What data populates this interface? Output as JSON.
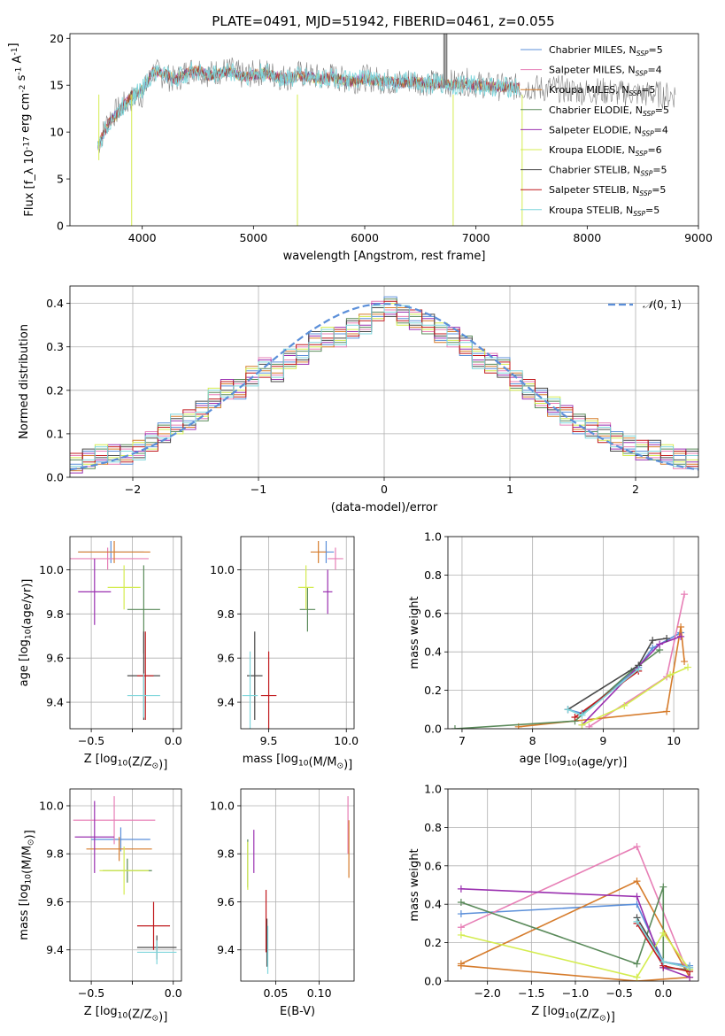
{
  "figure_title": "PLATE=0491, MJD=51942, FIBERID=0461, z=0.055",
  "colors": {
    "Chabrier MILES": "#5b8fd9",
    "Salpeter MILES": "#e77fb6",
    "Kroupa MILES": "#d67c2c",
    "Chabrier ELODIE": "#5a8a5a",
    "Salpeter ELODIE": "#9a30b0",
    "Kroupa ELODIE": "#d4ec50",
    "Chabrier STELIB": "#4a4a4a",
    "Salpeter STELIB": "#c0181c",
    "Kroupa STELIB": "#7fd6dc",
    "data": "#808080",
    "normal": "#5b8fd9"
  },
  "chart_data": [
    {
      "id": "spectrum",
      "type": "line",
      "xlabel": "wavelength [Angstrom, rest frame]",
      "ylabel": "Flux [f_λ 10^-17 erg cm^-2 s^-1 A^-1]",
      "xlim": [
        3350,
        9000
      ],
      "ylim": [
        0,
        20.5
      ],
      "xticks": [
        4000,
        5000,
        6000,
        7000,
        8000,
        9000
      ],
      "yticks": [
        0,
        5,
        10,
        15,
        20
      ],
      "legend": {
        "position": "right",
        "entries": [
          "Chabrier MILES, N_SSP=5",
          "Salpeter MILES, N_SSP=4",
          "Kroupa MILES, N_SSP=5",
          "Chabrier ELODIE, N_SSP=5",
          "Salpeter ELODIE, N_SSP=4",
          "Kroupa ELODIE, N_SSP=6",
          "Chabrier STELIB, N_SSP=5",
          "Salpeter STELIB, N_SSP=5",
          "Kroupa STELIB, N_SSP=5"
        ]
      },
      "data_curve": {
        "x": [
          3600,
          3700,
          3800,
          3900,
          4000,
          4100,
          4200,
          4300,
          4400,
          4500,
          4600,
          4700,
          4800,
          4900,
          5000,
          5100,
          5200,
          5300,
          5400,
          5500,
          5600,
          5700,
          5800,
          5900,
          6000,
          6100,
          6200,
          6300,
          6400,
          6500,
          6600,
          6700,
          6800,
          6900,
          7000,
          7100,
          7200,
          7300,
          7400,
          7500,
          7600,
          7700,
          7800,
          7900,
          8000,
          8100,
          8200,
          8300,
          8400,
          8500,
          8600,
          8700,
          8800
        ],
        "y": [
          8.5,
          11.5,
          12.5,
          13.5,
          14.0,
          16.5,
          16.0,
          15.5,
          16.5,
          16.8,
          16.2,
          16.5,
          16.6,
          16.0,
          16.2,
          16.5,
          16.0,
          15.8,
          16.2,
          16.0,
          15.8,
          16.0,
          15.6,
          15.5,
          15.8,
          15.6,
          15.4,
          15.3,
          15.5,
          15.4,
          15.2,
          15.3,
          15.2,
          15.4,
          15.1,
          15.0,
          14.8,
          14.9,
          14.7,
          14.8,
          14.6,
          14.7,
          14.5,
          14.4,
          14.3,
          14.4,
          14.3,
          14.1,
          14.2,
          14.0,
          14.1,
          13.9,
          14.0
        ]
      },
      "model_curve": {
        "x": [
          3600,
          3700,
          3800,
          3900,
          4000,
          4100,
          4200,
          4300,
          4400,
          4500,
          4600,
          4700,
          4800,
          4900,
          5000,
          5100,
          5200,
          5300,
          5400,
          5500,
          5600,
          5700,
          5800,
          5900,
          6000,
          6100,
          6200,
          6300,
          6400,
          6500,
          6600,
          6700,
          6800,
          6900,
          7000,
          7100,
          7200,
          7300,
          7400
        ],
        "y": [
          8.5,
          11.0,
          12.3,
          13.8,
          14.5,
          16.5,
          16.2,
          15.6,
          16.3,
          16.6,
          16.0,
          16.3,
          16.5,
          15.9,
          16.1,
          16.3,
          15.9,
          15.7,
          16.0,
          15.9,
          15.7,
          15.9,
          15.5,
          15.4,
          15.7,
          15.5,
          15.4,
          15.2,
          15.4,
          15.3,
          15.1,
          15.2,
          15.0,
          15.2,
          15.0,
          14.9,
          14.8,
          14.8,
          14.7
        ]
      }
    },
    {
      "id": "residuals",
      "type": "line",
      "xlabel": "(data-model)/error",
      "ylabel": "Normed distribution",
      "xlim": [
        -2.5,
        2.5
      ],
      "ylim": [
        0,
        0.44
      ],
      "xticks": [
        -2,
        -1,
        0,
        1,
        2
      ],
      "yticks": [
        0.0,
        0.1,
        0.2,
        0.3,
        0.4
      ],
      "legend": {
        "position": "top-right",
        "entries": [
          "N(0,1)"
        ]
      },
      "bins": [
        -2.5,
        -2.4,
        -2.3,
        -2.2,
        -2.1,
        -2.0,
        -1.9,
        -1.8,
        -1.7,
        -1.6,
        -1.5,
        -1.4,
        -1.3,
        -1.2,
        -1.1,
        -1.0,
        -0.9,
        -0.8,
        -0.7,
        -0.6,
        -0.5,
        -0.4,
        -0.3,
        -0.2,
        -0.1,
        0.0,
        0.1,
        0.2,
        0.3,
        0.4,
        0.5,
        0.6,
        0.7,
        0.8,
        0.9,
        1.0,
        1.1,
        1.2,
        1.3,
        1.4,
        1.5,
        1.6,
        1.7,
        1.8,
        1.9,
        2.0,
        2.1,
        2.2,
        2.3,
        2.4
      ],
      "histogram_base": [
        0.03,
        0.04,
        0.05,
        0.05,
        0.05,
        0.06,
        0.08,
        0.1,
        0.12,
        0.13,
        0.15,
        0.18,
        0.2,
        0.2,
        0.23,
        0.25,
        0.24,
        0.27,
        0.28,
        0.31,
        0.32,
        0.32,
        0.34,
        0.35,
        0.38,
        0.39,
        0.37,
        0.36,
        0.35,
        0.33,
        0.32,
        0.3,
        0.27,
        0.26,
        0.25,
        0.22,
        0.2,
        0.18,
        0.16,
        0.14,
        0.12,
        0.11,
        0.1,
        0.08,
        0.07,
        0.06,
        0.06,
        0.05,
        0.04,
        0.04
      ]
    },
    {
      "id": "age-vs-Z",
      "type": "scatter",
      "xlabel": "Z [log10(Z/Z_sun)]",
      "ylabel": "age [log10(age/yr)]",
      "xlim": [
        -0.63,
        0.05
      ],
      "ylim": [
        9.28,
        10.15
      ],
      "xticks": [
        -0.5,
        -0.25,
        0.0
      ],
      "yticks": [
        9.4,
        9.6,
        9.8,
        10.0
      ],
      "points": [
        {
          "model": "Chabrier MILES",
          "x": -0.38,
          "y": 10.08,
          "xerr": 0.2,
          "yerr": 0.05
        },
        {
          "model": "Salpeter MILES",
          "x": -0.4,
          "y": 10.05,
          "xerr": 0.25,
          "yerr": 0.05
        },
        {
          "model": "Kroupa MILES",
          "x": -0.36,
          "y": 10.08,
          "xerr": 0.22,
          "yerr": 0.05
        },
        {
          "model": "Chabrier ELODIE",
          "x": -0.18,
          "y": 9.82,
          "xerr": 0.1,
          "yerr": 0.2
        },
        {
          "model": "Salpeter ELODIE",
          "x": -0.48,
          "y": 9.9,
          "xerr": 0.1,
          "yerr": 0.15
        },
        {
          "model": "Kroupa ELODIE",
          "x": -0.3,
          "y": 9.92,
          "xerr": 0.1,
          "yerr": 0.1
        },
        {
          "model": "Chabrier STELIB",
          "x": -0.18,
          "y": 9.52,
          "xerr": 0.1,
          "yerr": 0.2
        },
        {
          "model": "Salpeter STELIB",
          "x": -0.17,
          "y": 9.52,
          "xerr": 0.05,
          "yerr": 0.2
        },
        {
          "model": "Kroupa STELIB",
          "x": -0.18,
          "y": 9.43,
          "xerr": 0.1,
          "yerr": 0.1
        }
      ]
    },
    {
      "id": "age-vs-mass",
      "type": "scatter",
      "xlabel": "mass [log10(M/M_sun)]",
      "ylabel": "",
      "xlim": [
        9.32,
        10.05
      ],
      "ylim": [
        9.28,
        10.15
      ],
      "xticks": [
        9.5,
        10.0
      ],
      "yticks": [
        9.4,
        9.6,
        9.8,
        10.0
      ],
      "points": [
        {
          "model": "Chabrier MILES",
          "x": 9.87,
          "y": 10.08,
          "xerr": 0.05,
          "yerr": 0.05
        },
        {
          "model": "Salpeter MILES",
          "x": 9.93,
          "y": 10.05,
          "xerr": 0.05,
          "yerr": 0.05
        },
        {
          "model": "Kroupa MILES",
          "x": 9.82,
          "y": 10.08,
          "xerr": 0.05,
          "yerr": 0.05
        },
        {
          "model": "Chabrier ELODIE",
          "x": 9.75,
          "y": 9.82,
          "xerr": 0.05,
          "yerr": 0.1
        },
        {
          "model": "Salpeter ELODIE",
          "x": 9.88,
          "y": 9.9,
          "xerr": 0.03,
          "yerr": 0.1
        },
        {
          "model": "Kroupa ELODIE",
          "x": 9.74,
          "y": 9.92,
          "xerr": 0.05,
          "yerr": 0.1
        },
        {
          "model": "Chabrier STELIB",
          "x": 9.41,
          "y": 9.52,
          "xerr": 0.05,
          "yerr": 0.2
        },
        {
          "model": "Salpeter STELIB",
          "x": 9.5,
          "y": 9.43,
          "xerr": 0.05,
          "yerr": 0.2
        },
        {
          "model": "Kroupa STELIB",
          "x": 9.38,
          "y": 9.43,
          "xerr": 0.05,
          "yerr": 0.2
        }
      ]
    },
    {
      "id": "mass-weight-vs-age",
      "type": "line",
      "xlabel": "age [log10(age/yr)]",
      "ylabel": "mass weight",
      "xlim": [
        6.8,
        10.35
      ],
      "ylim": [
        0,
        1.0
      ],
      "xticks": [
        7,
        8,
        9,
        10
      ],
      "yticks": [
        0.0,
        0.2,
        0.4,
        0.6,
        0.8,
        1.0
      ],
      "series": [
        {
          "model": "Chabrier MILES",
          "x": [
            8.5,
            8.7,
            9.5,
            9.7,
            10.1
          ],
          "y": [
            0.1,
            0.08,
            0.32,
            0.42,
            0.5
          ]
        },
        {
          "model": "Salpeter MILES",
          "x": [
            8.8,
            9.9,
            10.15
          ],
          "y": [
            0.01,
            0.27,
            0.7
          ]
        },
        {
          "model": "Kroupa MILES",
          "x": [
            7.8,
            9.9,
            10.1,
            10.15
          ],
          "y": [
            0.01,
            0.09,
            0.53,
            0.35
          ]
        },
        {
          "model": "Chabrier ELODIE",
          "x": [
            6.9,
            8.6,
            9.4,
            9.8
          ],
          "y": [
            0.0,
            0.04,
            0.3,
            0.41
          ]
        },
        {
          "model": "Salpeter ELODIE",
          "x": [
            8.7,
            9.8,
            10.1
          ],
          "y": [
            0.02,
            0.44,
            0.48
          ]
        },
        {
          "model": "Kroupa ELODIE",
          "x": [
            8.7,
            9.3,
            9.95,
            10.2
          ],
          "y": [
            0.02,
            0.12,
            0.28,
            0.32
          ]
        },
        {
          "model": "Chabrier STELIB",
          "x": [
            8.5,
            9.5,
            9.7,
            9.9
          ],
          "y": [
            0.1,
            0.33,
            0.46,
            0.47
          ]
        },
        {
          "model": "Salpeter STELIB",
          "x": [
            8.6,
            9.5
          ],
          "y": [
            0.06,
            0.3
          ]
        },
        {
          "model": "Kroupa STELIB",
          "x": [
            8.5,
            8.7,
            9.5
          ],
          "y": [
            0.1,
            0.07,
            0.31
          ]
        }
      ]
    },
    {
      "id": "mass-vs-Z",
      "type": "scatter",
      "xlabel": "Z [log10(Z/Z_sun)]",
      "ylabel": "mass [log10(M/M_sun)]",
      "xlim": [
        -0.63,
        0.05
      ],
      "ylim": [
        9.27,
        10.07
      ],
      "xticks": [
        -0.5,
        -0.25,
        0.0
      ],
      "yticks": [
        9.4,
        9.6,
        9.8,
        10.0
      ],
      "points": [
        {
          "model": "Chabrier MILES",
          "x": -0.32,
          "y": 9.86,
          "xerr": 0.18,
          "yerr": 0.05
        },
        {
          "model": "Salpeter MILES",
          "x": -0.36,
          "y": 9.94,
          "xerr": 0.25,
          "yerr": 0.1
        },
        {
          "model": "Kroupa MILES",
          "x": -0.33,
          "y": 9.82,
          "xerr": 0.2,
          "yerr": 0.05
        },
        {
          "model": "Chabrier ELODIE",
          "x": -0.28,
          "y": 9.73,
          "xerr": 0.15,
          "yerr": 0.05
        },
        {
          "model": "Salpeter ELODIE",
          "x": -0.48,
          "y": 9.87,
          "xerr": 0.12,
          "yerr": 0.15
        },
        {
          "model": "Kroupa ELODIE",
          "x": -0.3,
          "y": 9.73,
          "xerr": 0.15,
          "yerr": 0.1
        },
        {
          "model": "Chabrier STELIB",
          "x": -0.1,
          "y": 9.41,
          "xerr": 0.12,
          "yerr": 0.05
        },
        {
          "model": "Salpeter STELIB",
          "x": -0.12,
          "y": 9.5,
          "xerr": 0.1,
          "yerr": 0.1
        },
        {
          "model": "Kroupa STELIB",
          "x": -0.1,
          "y": 9.39,
          "xerr": 0.12,
          "yerr": 0.05
        }
      ]
    },
    {
      "id": "mass-vs-EBV",
      "type": "scatter",
      "xlabel": "E(B-V)",
      "ylabel": "",
      "xlim": [
        0.01,
        0.14
      ],
      "ylim": [
        9.27,
        10.07
      ],
      "xticks": [
        0.05,
        0.1
      ],
      "yticks": [
        9.4,
        9.6,
        9.8,
        10.0
      ],
      "points": [
        {
          "model": "Salpeter MILES",
          "x": 0.133,
          "y": 9.92,
          "xerr": 0.0,
          "yerr": 0.12
        },
        {
          "model": "Kroupa MILES",
          "x": 0.134,
          "y": 9.82,
          "xerr": 0.0,
          "yerr": 0.12
        },
        {
          "model": "Chabrier ELODIE",
          "x": 0.018,
          "y": 9.76,
          "xerr": 0.0,
          "yerr": 0.1
        },
        {
          "model": "Salpeter ELODIE",
          "x": 0.025,
          "y": 9.81,
          "xerr": 0.0,
          "yerr": 0.09
        },
        {
          "model": "Kroupa ELODIE",
          "x": 0.018,
          "y": 9.75,
          "xerr": 0.0,
          "yerr": 0.1
        },
        {
          "model": "Chabrier STELIB",
          "x": 0.04,
          "y": 9.43,
          "xerr": 0.0,
          "yerr": 0.1
        },
        {
          "model": "Salpeter STELIB",
          "x": 0.039,
          "y": 9.52,
          "xerr": 0.0,
          "yerr": 0.13
        },
        {
          "model": "Kroupa STELIB",
          "x": 0.041,
          "y": 9.4,
          "xerr": 0.0,
          "yerr": 0.1
        }
      ]
    },
    {
      "id": "mass-weight-vs-Z",
      "type": "line",
      "xlabel": "Z [log10(Z/Z_sun)]",
      "ylabel": "mass weight",
      "xlim": [
        -2.45,
        0.4
      ],
      "ylim": [
        0,
        1.0
      ],
      "xticks": [
        -2.0,
        -1.5,
        -1.0,
        -0.5,
        0.0
      ],
      "yticks": [
        0.0,
        0.2,
        0.4,
        0.6,
        0.8,
        1.0
      ],
      "series": [
        {
          "model": "Chabrier MILES",
          "x": [
            -2.3,
            -0.3,
            0.0,
            0.3
          ],
          "y": [
            0.35,
            0.4,
            0.1,
            0.08
          ]
        },
        {
          "model": "Salpeter MILES",
          "x": [
            -2.3,
            -0.3,
            0.3
          ],
          "y": [
            0.28,
            0.7,
            0.02
          ]
        },
        {
          "model": "Kroupa MILES",
          "x": [
            -2.3,
            -0.3,
            0.3,
            -0.3,
            -2.3
          ],
          "y": [
            0.09,
            0.52,
            0.02,
            0.0,
            0.08
          ]
        },
        {
          "model": "Chabrier ELODIE",
          "x": [
            -2.3,
            -0.3,
            0.0,
            0.0,
            0.3
          ],
          "y": [
            0.41,
            0.09,
            0.49,
            0.07,
            0.06
          ]
        },
        {
          "model": "Salpeter ELODIE",
          "x": [
            -2.3,
            -0.3,
            0.0,
            0.3
          ],
          "y": [
            0.48,
            0.44,
            0.07,
            0.02
          ]
        },
        {
          "model": "Kroupa ELODIE",
          "x": [
            -2.3,
            -0.3,
            0.0,
            0.3
          ],
          "y": [
            0.24,
            0.02,
            0.25,
            0.06
          ]
        },
        {
          "model": "Chabrier STELIB",
          "x": [
            -0.3,
            0.0,
            0.3
          ],
          "y": [
            0.33,
            0.1,
            0.07
          ]
        },
        {
          "model": "Salpeter STELIB",
          "x": [
            -0.3,
            0.0,
            0.3
          ],
          "y": [
            0.3,
            0.08,
            0.05
          ]
        },
        {
          "model": "Kroupa STELIB",
          "x": [
            -0.3,
            0.0,
            0.3
          ],
          "y": [
            0.31,
            0.1,
            0.07
          ]
        }
      ]
    }
  ]
}
